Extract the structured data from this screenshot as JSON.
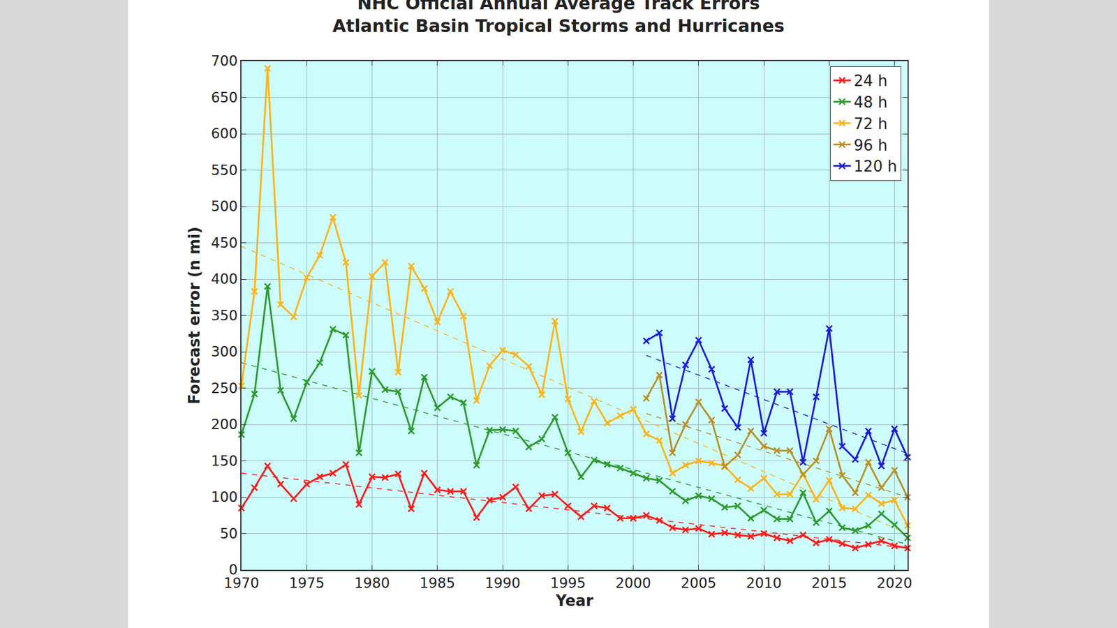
{
  "chart_data": {
    "type": "line",
    "title": "NHC Official Annual Average Track Errors",
    "subtitle": "Atlantic Basin Tropical Storms and Hurricanes",
    "x_label": "Year",
    "y_label": "Forecast error (n mi)",
    "x": [
      1970,
      1971,
      1972,
      1973,
      1974,
      1975,
      1976,
      1977,
      1978,
      1979,
      1980,
      1981,
      1982,
      1983,
      1984,
      1985,
      1986,
      1987,
      1988,
      1989,
      1990,
      1991,
      1992,
      1993,
      1994,
      1995,
      1996,
      1997,
      1998,
      1999,
      2000,
      2001,
      2002,
      2003,
      2004,
      2005,
      2006,
      2007,
      2008,
      2009,
      2010,
      2011,
      2012,
      2013,
      2014,
      2015,
      2016,
      2017,
      2018,
      2019,
      2020,
      2021
    ],
    "series": [
      {
        "name": "24 h",
        "color": "#ff1a1a",
        "values": [
          85,
          113,
          143,
          118,
          98,
          118,
          128,
          133,
          145,
          90,
          128,
          127,
          132,
          84,
          133,
          110,
          108,
          108,
          72,
          96,
          100,
          114,
          84,
          102,
          104,
          88,
          73,
          88,
          85,
          71,
          71,
          75,
          68,
          58,
          55,
          57,
          49,
          51,
          48,
          46,
          50,
          44,
          40,
          48,
          37,
          42,
          36,
          30,
          35,
          40,
          33,
          30
        ],
        "trend": {
          "x": [
            1970,
            2021
          ],
          "values": [
            133,
            30
          ]
        }
      },
      {
        "name": "48 h",
        "color": "#2e9a2e",
        "values": [
          186,
          242,
          390,
          247,
          208,
          258,
          285,
          331,
          323,
          161,
          273,
          248,
          245,
          191,
          265,
          223,
          238,
          230,
          144,
          192,
          193,
          191,
          169,
          180,
          210,
          161,
          128,
          151,
          145,
          140,
          133,
          126,
          123,
          108,
          95,
          102,
          98,
          86,
          88,
          71,
          82,
          70,
          70,
          106,
          65,
          81,
          58,
          54,
          61,
          77,
          62,
          44
        ],
        "trend": {
          "x": [
            1970,
            2021
          ],
          "values": [
            285,
            35
          ]
        }
      },
      {
        "name": "72 h",
        "color": "#ffb319",
        "values": [
          253,
          383,
          690,
          365,
          348,
          402,
          433,
          485,
          423,
          240,
          404,
          423,
          272,
          418,
          387,
          341,
          383,
          349,
          233,
          281,
          302,
          296,
          280,
          241,
          342,
          235,
          190,
          232,
          202,
          212,
          221,
          187,
          178,
          133,
          144,
          150,
          147,
          143,
          124,
          112,
          126,
          104,
          104,
          132,
          97,
          123,
          85,
          84,
          103,
          91,
          96,
          61
        ],
        "trend": {
          "x": [
            1970,
            2021
          ],
          "values": [
            445,
            50
          ]
        }
      },
      {
        "name": "96 h",
        "color": "#b8912a",
        "values": [
          null,
          null,
          null,
          null,
          null,
          null,
          null,
          null,
          null,
          null,
          null,
          null,
          null,
          null,
          null,
          null,
          null,
          null,
          null,
          null,
          null,
          null,
          null,
          null,
          null,
          null,
          null,
          null,
          null,
          null,
          null,
          236,
          268,
          161,
          200,
          231,
          206,
          142,
          158,
          191,
          170,
          164,
          164,
          131,
          150,
          194,
          130,
          106,
          148,
          113,
          137,
          100
        ],
        "trend": {
          "x": [
            2001,
            2021
          ],
          "values": [
            215,
            100
          ]
        }
      },
      {
        "name": "120 h",
        "color": "#1c1cd6",
        "values": [
          null,
          null,
          null,
          null,
          null,
          null,
          null,
          null,
          null,
          null,
          null,
          null,
          null,
          null,
          null,
          null,
          null,
          null,
          null,
          null,
          null,
          null,
          null,
          null,
          null,
          null,
          null,
          null,
          null,
          null,
          null,
          315,
          326,
          208,
          282,
          316,
          276,
          222,
          196,
          289,
          188,
          245,
          245,
          148,
          238,
          332,
          170,
          152,
          191,
          143,
          194,
          155
        ],
        "trend": {
          "x": [
            2001,
            2021
          ],
          "values": [
            295,
            160
          ]
        }
      }
    ],
    "xlim": [
      1970,
      2021
    ],
    "xticks": [
      1970,
      1975,
      1980,
      1985,
      1990,
      1995,
      2000,
      2005,
      2010,
      2015,
      2020
    ],
    "ylim": [
      0,
      700
    ],
    "yticks": [
      0,
      50,
      100,
      150,
      200,
      250,
      300,
      350,
      400,
      450,
      500,
      550,
      600,
      650,
      700
    ],
    "grid": true,
    "legend": "upper right",
    "marker": "x",
    "line_style": "solid"
  }
}
